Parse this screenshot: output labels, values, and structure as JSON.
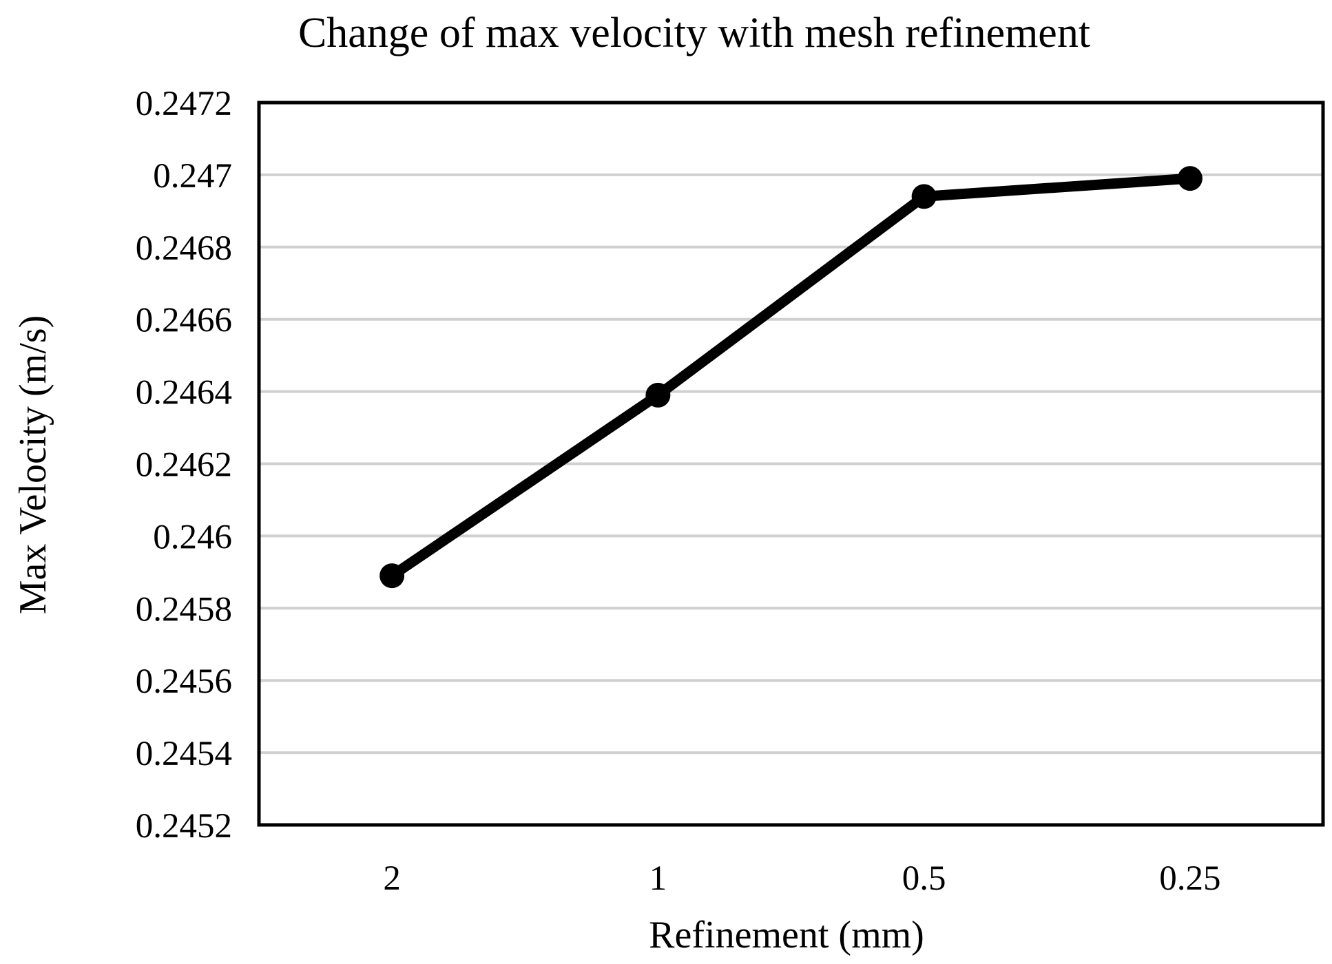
{
  "chart_data": {
    "type": "line",
    "title": "Change of max velocity with mesh refinement",
    "xlabel": "Refinement (mm)",
    "ylabel": "Max Velocity (m/s)",
    "categories": [
      "2",
      "1",
      "0.5",
      "0.25"
    ],
    "series": [
      {
        "values": [
          0.24589,
          0.24639,
          0.24694,
          0.24699
        ]
      }
    ],
    "ylim": [
      0.2452,
      0.2472
    ],
    "yticks": [
      "0.2452",
      "0.2454",
      "0.2456",
      "0.2458",
      "0.246",
      "0.2462",
      "0.2464",
      "0.2466",
      "0.2468",
      "0.247",
      "0.2472"
    ],
    "grid": true,
    "legend": "none",
    "colors": {
      "line": "#000000",
      "grid": "#d0d0d0",
      "frame": "#000000"
    }
  }
}
